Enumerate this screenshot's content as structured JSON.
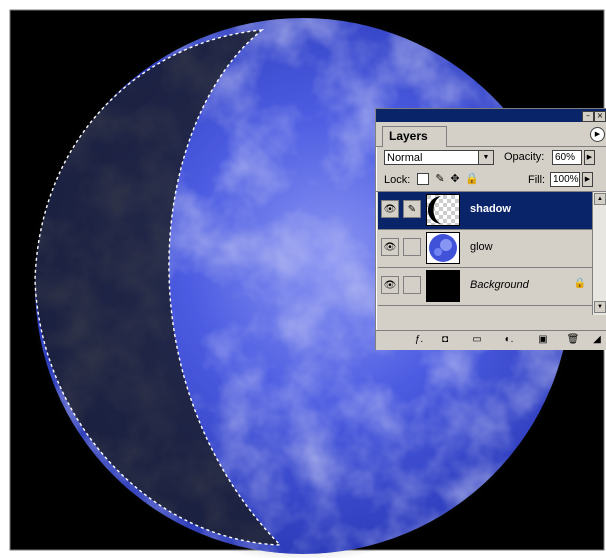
{
  "canvas": {
    "background_color": "#000000",
    "planet_color": "#3344c8",
    "selection_border": "dashed-white"
  },
  "layers_panel": {
    "tab_label": "Layers",
    "blend_mode": "Normal",
    "opacity_label": "Opacity:",
    "opacity_value": "60%",
    "lock_label": "Lock:",
    "fill_label": "Fill:",
    "fill_value": "100%",
    "layers": [
      {
        "name": "shadow",
        "selected": true,
        "thumb": "crescent-mask"
      },
      {
        "name": "glow",
        "selected": false,
        "thumb": "planet"
      },
      {
        "name": "Background",
        "selected": false,
        "thumb": "black",
        "locked": true
      }
    ],
    "accent_color": "#0a246a"
  }
}
